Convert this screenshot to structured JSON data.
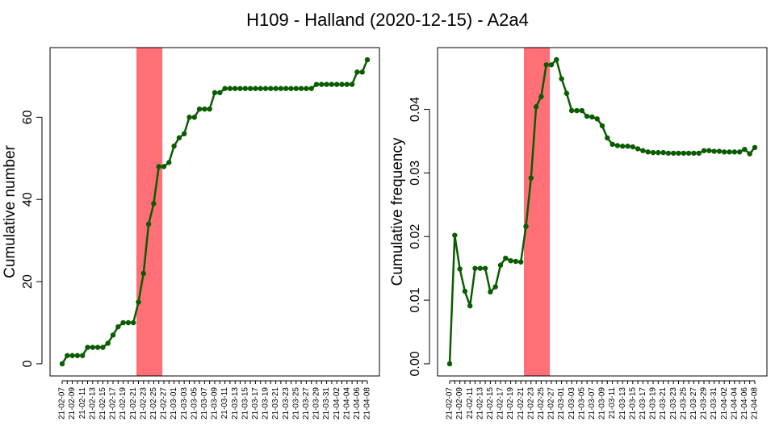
{
  "title": "H109 - Halland (2020-12-15) - A2a4",
  "chart_data": [
    {
      "type": "line",
      "ylabel": "Cumulative number",
      "color": "#0a5c00",
      "highlight_color": "#ff6f77",
      "highlight": [
        14.6,
        19.7
      ],
      "categories": [
        "21-02-07",
        null,
        "21-02-09",
        null,
        "21-02-11",
        null,
        "21-02-13",
        null,
        "21-02-15",
        null,
        "21-02-17",
        null,
        "21-02-19",
        null,
        "21-02-21",
        null,
        "21-02-23",
        null,
        "21-02-25",
        null,
        "21-02-27",
        null,
        "21-03-01",
        null,
        "21-03-03",
        null,
        "21-03-05",
        null,
        "21-03-07",
        null,
        "21-03-09",
        null,
        "21-03-11",
        null,
        "21-03-13",
        null,
        "21-03-15",
        null,
        "21-03-17",
        null,
        "21-03-19",
        null,
        "21-03-21",
        null,
        "21-03-23",
        null,
        "21-03-25",
        null,
        "21-03-27",
        null,
        "21-03-29",
        null,
        "21-03-31",
        null,
        "21-04-02",
        null,
        "21-04-04",
        null,
        "21-04-06",
        null,
        "21-04-08"
      ],
      "values": [
        0,
        2,
        2,
        2,
        2,
        4,
        4,
        4,
        4,
        5,
        7,
        9,
        10,
        10,
        10,
        15,
        22,
        34,
        39,
        48,
        48,
        49,
        53,
        55,
        56,
        60,
        60,
        62,
        62,
        62,
        66,
        66,
        67,
        67,
        67,
        67,
        67,
        67,
        67,
        67,
        67,
        67,
        67,
        67,
        67,
        67,
        67,
        67,
        67,
        67,
        68,
        68,
        68,
        68,
        68,
        68,
        68,
        68,
        71,
        71,
        74
      ],
      "ylim": [
        -2.96,
        76.96
      ],
      "yticks": [
        0,
        20,
        40,
        60
      ]
    },
    {
      "type": "line",
      "ylabel": "Cumulative frequency",
      "color": "#0a5c00",
      "highlight_color": "#ff6f77",
      "highlight": [
        14.6,
        19.7
      ],
      "categories": [
        "21-02-07",
        null,
        "21-02-09",
        null,
        "21-02-11",
        null,
        "21-02-13",
        null,
        "21-02-15",
        null,
        "21-02-17",
        null,
        "21-02-19",
        null,
        "21-02-21",
        null,
        "21-02-23",
        null,
        "21-02-25",
        null,
        "21-02-27",
        null,
        "21-03-01",
        null,
        "21-03-03",
        null,
        "21-03-05",
        null,
        "21-03-07",
        null,
        "21-03-09",
        null,
        "21-03-11",
        null,
        "21-03-13",
        null,
        "21-03-15",
        null,
        "21-03-17",
        null,
        "21-03-19",
        null,
        "21-03-21",
        null,
        "21-03-23",
        null,
        "21-03-25",
        null,
        "21-03-27",
        null,
        "21-03-29",
        null,
        "21-03-31",
        null,
        "21-04-02",
        null,
        "21-04-04",
        null,
        "21-04-06",
        null,
        "21-04-08"
      ],
      "values": [
        0,
        0.0202,
        0.0149,
        0.0114,
        0.0091,
        0.015,
        0.015,
        0.015,
        0.0113,
        0.0121,
        0.0155,
        0.0166,
        0.0162,
        0.0161,
        0.016,
        0.0216,
        0.0292,
        0.0404,
        0.042,
        0.047,
        0.047,
        0.0478,
        0.0448,
        0.0425,
        0.0398,
        0.0398,
        0.0398,
        0.0389,
        0.0388,
        0.0385,
        0.0374,
        0.0355,
        0.0345,
        0.0343,
        0.0342,
        0.0342,
        0.0341,
        0.0338,
        0.0335,
        0.0333,
        0.0332,
        0.0332,
        0.0332,
        0.0331,
        0.0331,
        0.0331,
        0.0331,
        0.0331,
        0.0331,
        0.0331,
        0.0335,
        0.0335,
        0.0334,
        0.0334,
        0.0333,
        0.0333,
        0.0333,
        0.0333,
        0.0337,
        0.033,
        0.034
      ],
      "ylim": [
        -0.00191,
        0.0497
      ],
      "yticks": [
        {
          "value": 0,
          "label": "0.00"
        },
        0.01,
        0.02,
        0.03,
        0.04
      ]
    }
  ]
}
